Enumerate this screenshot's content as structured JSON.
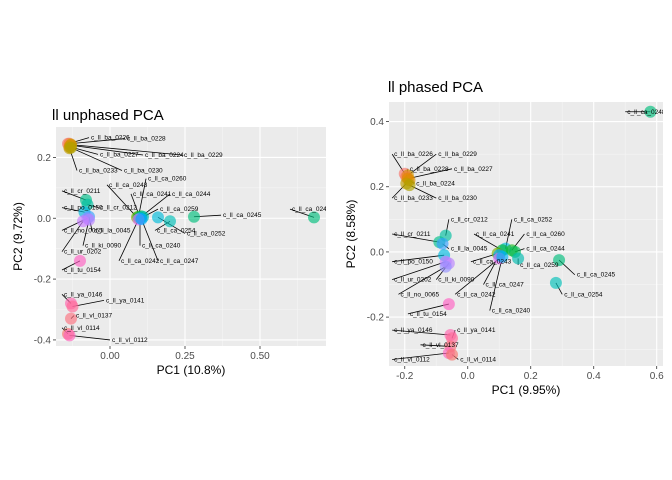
{
  "chart_data": [
    {
      "type": "scatter",
      "title": "ll unphased PCA",
      "xlabel": "PC1 (10.8%)",
      "ylabel": "PC2 (9.72%)",
      "xlim": [
        -0.18,
        0.72
      ],
      "ylim": [
        -0.42,
        0.3
      ],
      "xticks": [
        0.0,
        0.25,
        0.5
      ],
      "xtick_labels": [
        "0.00",
        "0.25",
        "0.50"
      ],
      "yticks": [
        -0.4,
        -0.2,
        0.0,
        0.2
      ],
      "ytick_labels": [
        "-0.4",
        "-0.2",
        "0.0",
        "0.2"
      ],
      "grid": true,
      "legend": "none",
      "points": [
        {
          "label": "c_ll_ba_0226",
          "x": -0.14,
          "y": 0.245,
          "color": "#F8766D",
          "lx": -0.07,
          "ly": 0.265
        },
        {
          "label": "c_ll_ba_0228",
          "x": -0.135,
          "y": 0.245,
          "color": "#F17E3C",
          "lx": 0.05,
          "ly": 0.262
        },
        {
          "label": "c_ll_ba_0227",
          "x": -0.135,
          "y": 0.235,
          "color": "#E58700",
          "lx": -0.04,
          "ly": 0.21
        },
        {
          "label": "c_ll_ba_0224",
          "x": -0.13,
          "y": 0.24,
          "color": "#DB8E00",
          "lx": 0.11,
          "ly": 0.208
        },
        {
          "label": "c_ll_ba_0229",
          "x": -0.13,
          "y": 0.242,
          "color": "#CD9600",
          "lx": 0.24,
          "ly": 0.208
        },
        {
          "label": "c_ll_ba_0233",
          "x": -0.135,
          "y": 0.23,
          "color": "#C09B00",
          "lx": -0.11,
          "ly": 0.157
        },
        {
          "label": "c_ll_ba_0230",
          "x": -0.13,
          "y": 0.232,
          "color": "#AFA100",
          "lx": 0.04,
          "ly": 0.157
        },
        {
          "label": "c_ll_ca_0243",
          "x": 0.09,
          "y": 0.003,
          "color": "#7CAE00",
          "lx": -0.01,
          "ly": 0.11
        },
        {
          "label": "c_ll_ca_0260",
          "x": 0.095,
          "y": 0.005,
          "color": "#1FB924",
          "lx": 0.12,
          "ly": 0.13
        },
        {
          "label": "c_ll_ca_0241",
          "x": 0.1,
          "y": 0.002,
          "color": "#00BA38",
          "lx": 0.07,
          "ly": 0.08
        },
        {
          "label": "c_ll_ca_0244",
          "x": 0.105,
          "y": 0.006,
          "color": "#00BC59",
          "lx": 0.2,
          "ly": 0.08
        },
        {
          "label": "c_ll_cr_0211",
          "x": -0.08,
          "y": 0.06,
          "color": "#00C08B",
          "lx": -0.16,
          "ly": 0.09
        },
        {
          "label": "c_ll_cr_0212",
          "x": -0.075,
          "y": 0.045,
          "color": "#00BFA0",
          "lx": -0.04,
          "ly": 0.035
        },
        {
          "label": "c_ll_ca_0259",
          "x": 0.11,
          "y": 0.004,
          "color": "#00BCB1",
          "lx": 0.16,
          "ly": 0.03
        },
        {
          "label": "c_ll_po_0150",
          "x": -0.085,
          "y": 0.02,
          "color": "#00BAE0",
          "lx": -0.16,
          "ly": 0.035
        },
        {
          "label": "c_ll_ca_0245",
          "x": 0.28,
          "y": 0.005,
          "color": "#00BF7D",
          "lx": 0.37,
          "ly": 0.01
        },
        {
          "label": "c_ll_ca_0248",
          "x": 0.68,
          "y": 0.003,
          "color": "#00BF7D",
          "lx": 0.6,
          "ly": 0.03
        },
        {
          "label": "c_ll_la_0045",
          "x": -0.07,
          "y": 0.005,
          "color": "#35A2FF",
          "lx": -0.06,
          "ly": -0.04
        },
        {
          "label": "c_ll_ca_0254",
          "x": 0.2,
          "y": -0.01,
          "color": "#00C0B8",
          "lx": 0.15,
          "ly": -0.04
        },
        {
          "label": "c_ll_ca_0252",
          "x": 0.16,
          "y": 0.003,
          "color": "#00BBDA",
          "lx": 0.25,
          "ly": -0.05
        },
        {
          "label": "c_ll_no_0065",
          "x": -0.075,
          "y": 0.0,
          "color": "#9590FF",
          "lx": -0.16,
          "ly": -0.04
        },
        {
          "label": "c_ll_ki_0090",
          "x": -0.07,
          "y": -0.005,
          "color": "#B983FF",
          "lx": -0.09,
          "ly": -0.09
        },
        {
          "label": "c_ll_ca_0240",
          "x": 0.1,
          "y": 0.0,
          "color": "#00B4F0",
          "lx": 0.1,
          "ly": -0.09
        },
        {
          "label": "c_ll_ur_0202",
          "x": -0.09,
          "y": -0.01,
          "color": "#C77CFF",
          "lx": -0.16,
          "ly": -0.11
        },
        {
          "label": "c_ll_ca_0242",
          "x": 0.095,
          "y": -0.004,
          "color": "#E76BF3",
          "lx": 0.03,
          "ly": -0.14
        },
        {
          "label": "c_ll_ca_0247",
          "x": 0.105,
          "y": -0.003,
          "color": "#00A9FF",
          "lx": 0.16,
          "ly": -0.14
        },
        {
          "label": "c_ll_tu_0154",
          "x": -0.1,
          "y": -0.14,
          "color": "#FF61C3",
          "lx": -0.16,
          "ly": -0.17
        },
        {
          "label": "c_ll_ya_0146",
          "x": -0.13,
          "y": -0.28,
          "color": "#FF65AE",
          "lx": -0.16,
          "ly": -0.25
        },
        {
          "label": "c_ll_ya_0141",
          "x": -0.125,
          "y": -0.29,
          "color": "#FF6A98",
          "lx": -0.02,
          "ly": -0.27
        },
        {
          "label": "c_ll_vl_0137",
          "x": -0.13,
          "y": -0.33,
          "color": "#FC717F",
          "lx": -0.12,
          "ly": -0.32
        },
        {
          "label": "c_ll_vl_0114",
          "x": -0.14,
          "y": -0.38,
          "color": "#F8766D",
          "lx": -0.16,
          "ly": -0.36
        },
        {
          "label": "c_ll_vl_0112",
          "x": -0.135,
          "y": -0.385,
          "color": "#FF62BC",
          "lx": 0.0,
          "ly": -0.4
        }
      ]
    },
    {
      "type": "scatter",
      "title": "ll phased PCA",
      "xlabel": "PC1 (9.95%)",
      "ylabel": "PC2 (8.58%)",
      "xlim": [
        -0.25,
        0.62
      ],
      "ylim": [
        -0.35,
        0.46
      ],
      "xticks": [
        -0.2,
        0.0,
        0.2,
        0.4,
        0.6
      ],
      "xtick_labels": [
        "-0.2",
        "0.0",
        "0.2",
        "0.4",
        "0.6"
      ],
      "yticks": [
        -0.2,
        0.0,
        0.2,
        0.4
      ],
      "ytick_labels": [
        "-0.2",
        "0.0",
        "0.2",
        "0.4"
      ],
      "grid": true,
      "legend": "none",
      "points": [
        {
          "label": "c_ll_ca_0248",
          "x": 0.58,
          "y": 0.43,
          "color": "#00BF7D",
          "lx": 0.5,
          "ly": 0.43
        },
        {
          "label": "c_ll_ba_0226",
          "x": -0.2,
          "y": 0.24,
          "color": "#F8766D",
          "lx": -0.24,
          "ly": 0.3
        },
        {
          "label": "c_ll_ba_0229",
          "x": -0.19,
          "y": 0.235,
          "color": "#CD9600",
          "lx": -0.1,
          "ly": 0.3
        },
        {
          "label": "c_ll_ba_0228",
          "x": -0.195,
          "y": 0.23,
          "color": "#F17E3C",
          "lx": -0.19,
          "ly": 0.255
        },
        {
          "label": "c_ll_ba_0227",
          "x": -0.19,
          "y": 0.225,
          "color": "#E58700",
          "lx": -0.05,
          "ly": 0.255
        },
        {
          "label": "c_ll_ba_0224",
          "x": -0.185,
          "y": 0.22,
          "color": "#DB8E00",
          "lx": -0.17,
          "ly": 0.21
        },
        {
          "label": "c_ll_ba_0233",
          "x": -0.195,
          "y": 0.21,
          "color": "#C09B00",
          "lx": -0.24,
          "ly": 0.165
        },
        {
          "label": "c_ll_ba_0230",
          "x": -0.185,
          "y": 0.205,
          "color": "#AFA100",
          "lx": -0.1,
          "ly": 0.165
        },
        {
          "label": "c_ll_cr_0212",
          "x": -0.07,
          "y": 0.05,
          "color": "#00BFA0",
          "lx": -0.06,
          "ly": 0.1
        },
        {
          "label": "c_ll_ca_0252",
          "x": 0.12,
          "y": 0.01,
          "color": "#00BBDA",
          "lx": 0.14,
          "ly": 0.1
        },
        {
          "label": "c_ll_ca_0260",
          "x": 0.14,
          "y": 0.005,
          "color": "#1FB924",
          "lx": 0.18,
          "ly": 0.055
        },
        {
          "label": "c_ll_cr_0211",
          "x": -0.09,
          "y": 0.03,
          "color": "#00C08B",
          "lx": -0.24,
          "ly": 0.055
        },
        {
          "label": "c_ll_la_0045",
          "x": -0.08,
          "y": 0.025,
          "color": "#35A2FF",
          "lx": -0.06,
          "ly": 0.01
        },
        {
          "label": "c_ll_ca_0241",
          "x": 0.11,
          "y": 0.005,
          "color": "#00BA38",
          "lx": 0.02,
          "ly": 0.055
        },
        {
          "label": "c_ll_ca_0244",
          "x": 0.15,
          "y": 0.0,
          "color": "#00BC59",
          "lx": 0.18,
          "ly": 0.01
        },
        {
          "label": "c_ll_po_0150",
          "x": -0.075,
          "y": -0.01,
          "color": "#00BAE0",
          "lx": -0.24,
          "ly": -0.03
        },
        {
          "label": "c_ll_ca_0243",
          "x": 0.095,
          "y": -0.005,
          "color": "#7CAE00",
          "lx": 0.01,
          "ly": -0.03
        },
        {
          "label": "c_ll_ca_0259",
          "x": 0.16,
          "y": -0.02,
          "color": "#00BCB1",
          "lx": 0.16,
          "ly": -0.04
        },
        {
          "label": "c_ll_ca_0245",
          "x": 0.29,
          "y": -0.025,
          "color": "#00BF7D",
          "lx": 0.34,
          "ly": -0.07
        },
        {
          "label": "c_ll_ur_0202",
          "x": -0.07,
          "y": -0.03,
          "color": "#C77CFF",
          "lx": -0.24,
          "ly": -0.085
        },
        {
          "label": "c_ll_ki_0090",
          "x": -0.06,
          "y": -0.035,
          "color": "#B983FF",
          "lx": -0.1,
          "ly": -0.085
        },
        {
          "label": "c_ll_ca_0247",
          "x": 0.1,
          "y": -0.01,
          "color": "#00A9FF",
          "lx": 0.05,
          "ly": -0.1
        },
        {
          "label": "c_ll_ca_0254",
          "x": 0.28,
          "y": -0.095,
          "color": "#00C0B8",
          "lx": 0.3,
          "ly": -0.13
        },
        {
          "label": "c_ll_no_0065",
          "x": -0.07,
          "y": -0.045,
          "color": "#9590FF",
          "lx": -0.22,
          "ly": -0.13
        },
        {
          "label": "c_ll_ca_0242",
          "x": 0.1,
          "y": -0.02,
          "color": "#E76BF3",
          "lx": -0.04,
          "ly": -0.13
        },
        {
          "label": "c_ll_ca_0240",
          "x": 0.11,
          "y": -0.015,
          "color": "#00B4F0",
          "lx": 0.07,
          "ly": -0.18
        },
        {
          "label": "c_ll_tu_0154",
          "x": -0.06,
          "y": -0.16,
          "color": "#FF61C3",
          "lx": -0.19,
          "ly": -0.19
        },
        {
          "label": "c_ll_ya_0146",
          "x": -0.055,
          "y": -0.255,
          "color": "#FF65AE",
          "lx": -0.24,
          "ly": -0.24
        },
        {
          "label": "c_ll_ya_0141",
          "x": -0.05,
          "y": -0.265,
          "color": "#FF6A98",
          "lx": -0.04,
          "ly": -0.24
        },
        {
          "label": "c_ll_vl_0137",
          "x": -0.055,
          "y": -0.29,
          "color": "#FC717F",
          "lx": -0.15,
          "ly": -0.285
        },
        {
          "label": "c_ll_vl_0112",
          "x": -0.06,
          "y": -0.31,
          "color": "#FF62BC",
          "lx": -0.24,
          "ly": -0.33
        },
        {
          "label": "c_ll_vl_0114",
          "x": -0.05,
          "y": -0.315,
          "color": "#F8766D",
          "lx": -0.03,
          "ly": -0.33
        }
      ]
    }
  ]
}
